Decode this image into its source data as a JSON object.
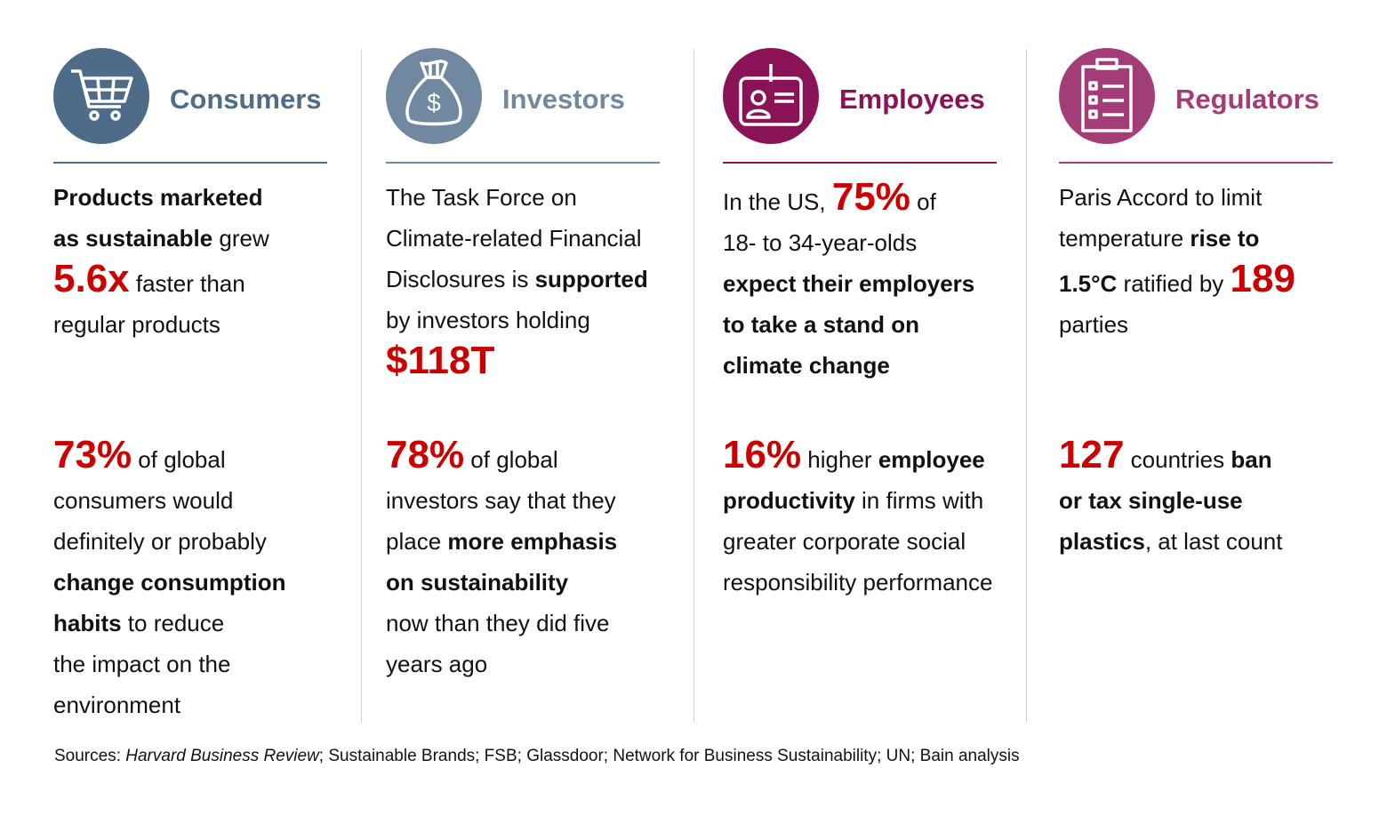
{
  "colors": {
    "consumers": "#4e6b88",
    "investors": "#7189a0",
    "employees": "#8a1256",
    "regulators": "#a23d77",
    "highlight": "#cc0000"
  },
  "columns": [
    {
      "key": "consumers",
      "icon": "shopping-cart-icon",
      "heading": "Consumers",
      "paragraphs": [
        [
          [
            {
              "t": "Products marketed",
              "s": "b"
            }
          ],
          [
            {
              "t": "as sustainable",
              "s": "b"
            },
            {
              "t": " grew",
              "s": "n"
            }
          ],
          [
            {
              "t": "5.6x",
              "s": "r"
            },
            {
              "t": "  faster than",
              "s": "n"
            }
          ],
          [
            {
              "t": "regular products",
              "s": "n"
            }
          ]
        ],
        [
          [
            {
              "t": "73%",
              "s": "r"
            },
            {
              "t": " of global",
              "s": "n"
            }
          ],
          [
            {
              "t": "consumers would",
              "s": "n"
            }
          ],
          [
            {
              "t": "definitely or probably",
              "s": "n"
            }
          ],
          [
            {
              "t": "change consumption",
              "s": "b"
            }
          ],
          [
            {
              "t": "habits",
              "s": "b"
            },
            {
              "t": " to reduce",
              "s": "n"
            }
          ],
          [
            {
              "t": "the impact on the",
              "s": "n"
            }
          ],
          [
            {
              "t": "environment",
              "s": "n"
            }
          ]
        ]
      ]
    },
    {
      "key": "investors",
      "icon": "money-bag-icon",
      "heading": "Investors",
      "paragraphs": [
        [
          [
            {
              "t": "The Task Force on",
              "s": "n"
            }
          ],
          [
            {
              "t": "Climate-related Financial",
              "s": "n"
            }
          ],
          [
            {
              "t": "Disclosures is ",
              "s": "n"
            },
            {
              "t": "supported",
              "s": "b"
            }
          ],
          [
            {
              "t": "by investors holding",
              "s": "n"
            }
          ],
          [
            {
              "t": "$118T",
              "s": "r"
            }
          ]
        ],
        [
          [
            {
              "t": "78%",
              "s": "r"
            },
            {
              "t": " of global",
              "s": "n"
            }
          ],
          [
            {
              "t": "investors say that they",
              "s": "n"
            }
          ],
          [
            {
              "t": "place ",
              "s": "n"
            },
            {
              "t": "more emphasis",
              "s": "b"
            }
          ],
          [
            {
              "t": "on sustainability",
              "s": "b"
            }
          ],
          [
            {
              "t": "now than they did five",
              "s": "n"
            }
          ],
          [
            {
              "t": "years ago",
              "s": "n"
            }
          ]
        ]
      ]
    },
    {
      "key": "employees",
      "icon": "id-badge-icon",
      "heading": "Employees",
      "paragraphs": [
        [
          [
            {
              "t": "In the US, ",
              "s": "n"
            },
            {
              "t": "75%",
              "s": "r"
            },
            {
              "t": " of",
              "s": "n"
            }
          ],
          [
            {
              "t": "18- to 34-year-olds",
              "s": "n"
            }
          ],
          [
            {
              "t": "expect their employers",
              "s": "b"
            }
          ],
          [
            {
              "t": "to take a stand on",
              "s": "b"
            }
          ],
          [
            {
              "t": "climate change",
              "s": "b"
            }
          ]
        ],
        [
          [
            {
              "t": "16%",
              "s": "r"
            },
            {
              "t": " higher ",
              "s": "n"
            },
            {
              "t": "employee",
              "s": "b"
            }
          ],
          [
            {
              "t": "productivity",
              "s": "b"
            },
            {
              "t": " in firms with",
              "s": "n"
            }
          ],
          [
            {
              "t": "greater corporate social",
              "s": "n"
            }
          ],
          [
            {
              "t": "responsibility performance",
              "s": "n"
            }
          ]
        ]
      ]
    },
    {
      "key": "regulators",
      "icon": "clipboard-checklist-icon",
      "heading": "Regulators",
      "paragraphs": [
        [
          [
            {
              "t": "Paris Accord to limit",
              "s": "n"
            }
          ],
          [
            {
              "t": "temperature ",
              "s": "n"
            },
            {
              "t": "rise to",
              "s": "b"
            }
          ],
          [
            {
              "t": "1.5°C",
              "s": "b"
            },
            {
              "t": " ratified by ",
              "s": "n"
            },
            {
              "t": "189",
              "s": "r"
            }
          ],
          [
            {
              "t": "parties",
              "s": "n"
            }
          ]
        ],
        [
          [
            {
              "t": "127",
              "s": "r"
            },
            {
              "t": " countries ",
              "s": "n"
            },
            {
              "t": "ban",
              "s": "b"
            }
          ],
          [
            {
              "t": "or tax single-use",
              "s": "b"
            }
          ],
          [
            {
              "t": "plastics",
              "s": "b"
            },
            {
              "t": ", at last count",
              "s": "n"
            }
          ]
        ]
      ]
    }
  ],
  "sources": {
    "label": "Sources: ",
    "italic": "Harvard Business Review",
    "rest": "; Sustainable Brands; FSB; Glassdoor; Network for Business Sustainability; UN; Bain analysis"
  }
}
